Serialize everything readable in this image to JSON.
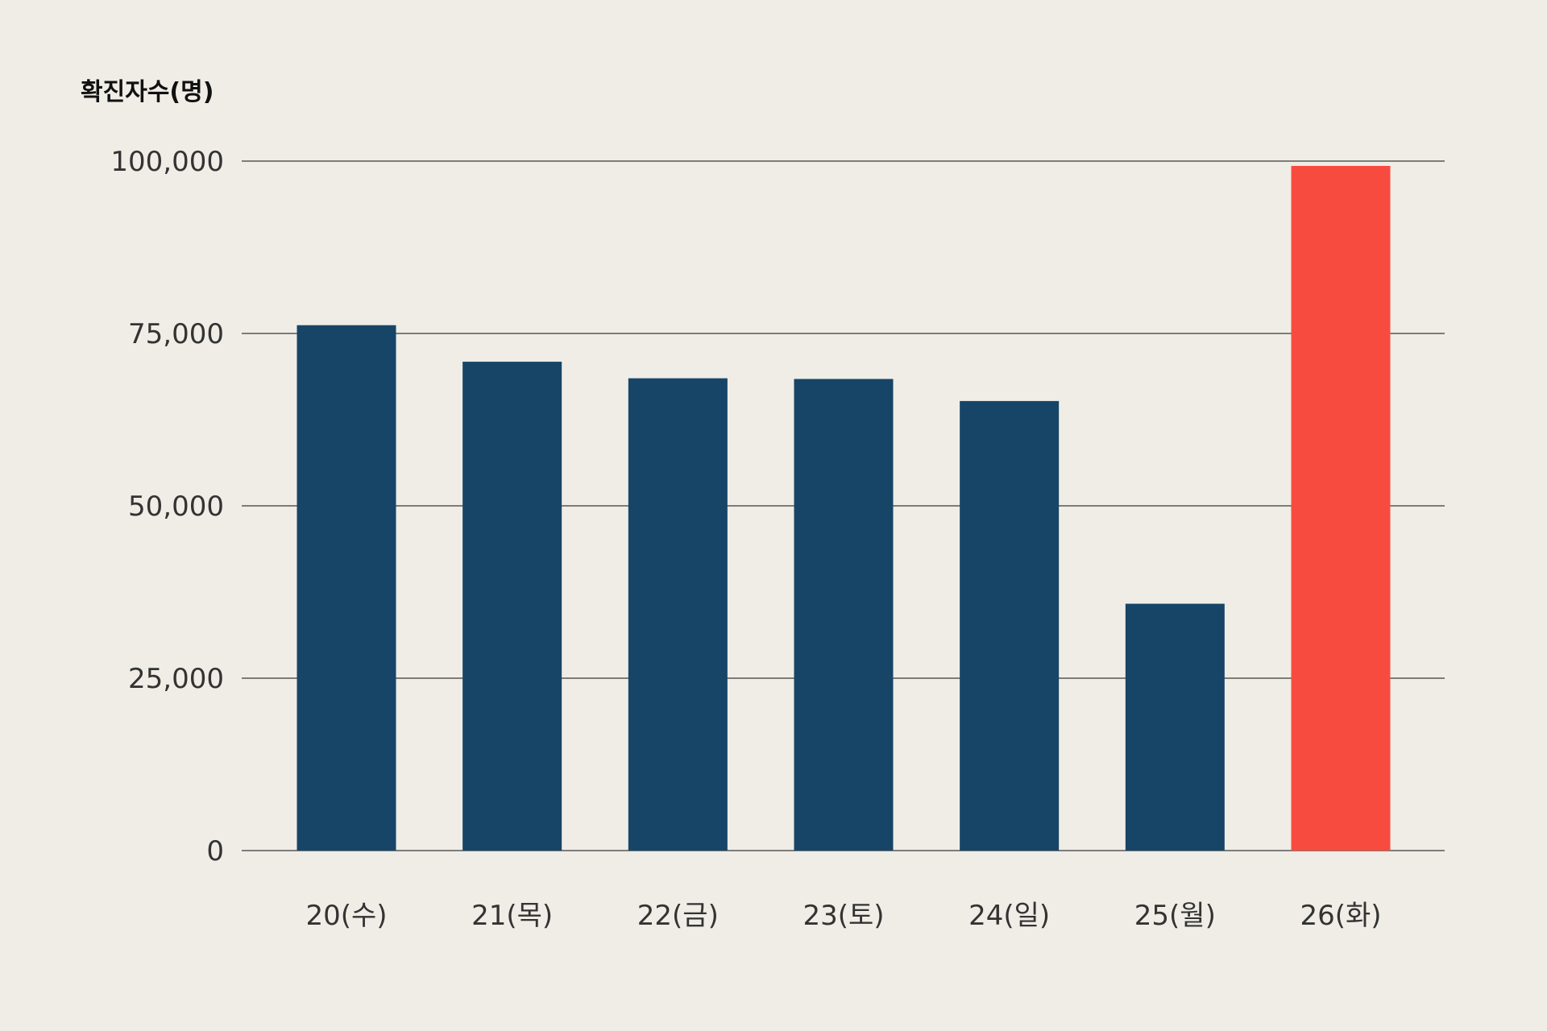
{
  "chart_data": {
    "type": "bar",
    "title": "",
    "xlabel": "",
    "ylabel": "확진자수(명)",
    "categories": [
      "20(수)",
      "21(목)",
      "22(금)",
      "23(토)",
      "24(일)",
      "25(월)",
      "26(화)"
    ],
    "values": [
      76200,
      70900,
      68500,
      68400,
      65200,
      35800,
      99300
    ],
    "ylim": [
      0,
      100000
    ],
    "yticks": [
      0,
      25000,
      50000,
      75000,
      100000
    ],
    "ytick_labels": [
      "0",
      "25,000",
      "50,000",
      "75,000",
      "100,000"
    ],
    "grid": true,
    "legend": "none",
    "colors": {
      "bar": "#174567",
      "highlight": "#f84b40",
      "background": "#efede6",
      "gridline": "#3a3a3a"
    },
    "highlight_index": 6
  }
}
